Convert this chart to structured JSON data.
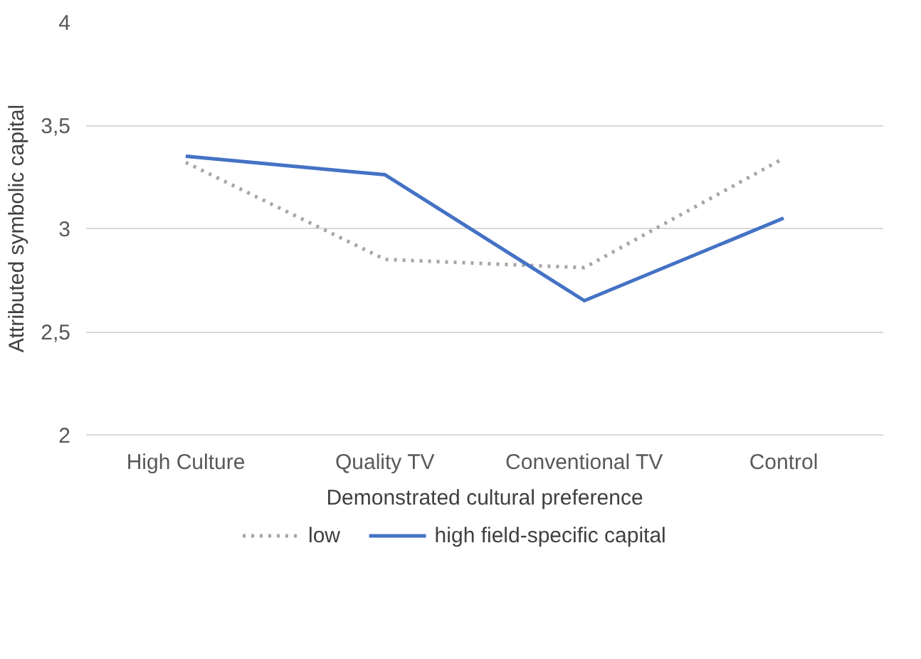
{
  "chart_data": {
    "type": "line",
    "xlabel": "Demonstrated cultural preference",
    "ylabel": "Attributed symbolic capital",
    "categories": [
      "High Culture",
      "Quality TV",
      "Conventional TV",
      "Control"
    ],
    "series": [
      {
        "name": "low",
        "color": "#a6a6a6",
        "line_style": "dotted",
        "values": [
          3.32,
          2.85,
          2.81,
          3.34
        ]
      },
      {
        "name": "high field-specific capital",
        "color": "#4472c4",
        "line_style": "solid",
        "values": [
          3.35,
          3.26,
          2.65,
          3.05
        ]
      }
    ],
    "ylim": [
      2,
      4
    ],
    "yticks": [
      2,
      {
        "value": 2.5,
        "label": "2,5"
      },
      3,
      {
        "value": 3.5,
        "label": "3,5"
      },
      4
    ],
    "grid": "y",
    "legend": "bottom"
  }
}
